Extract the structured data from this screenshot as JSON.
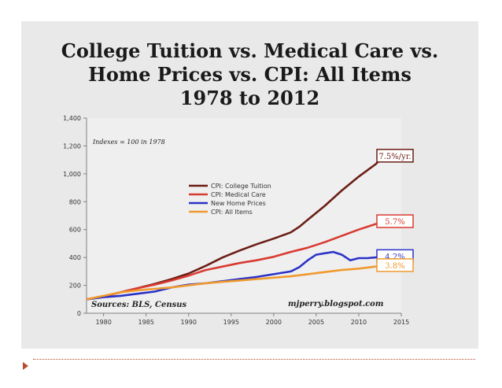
{
  "chart_data": {
    "type": "line",
    "title": "College Tuition vs. Medical Care vs. Home Prices vs. CPI: All Items 1978 to 2012",
    "title_lines": [
      "College Tuition vs. Medical Care vs.",
      "Home Prices vs. CPI: All Items",
      "1978 to 2012"
    ],
    "note": "Indexes = 100 in 1978",
    "xlabel": "",
    "ylabel": "",
    "xlim": [
      1978,
      2015
    ],
    "ylim": [
      0,
      1400
    ],
    "x_ticks": [
      1980,
      1985,
      1990,
      1995,
      2000,
      2005,
      2010,
      2015
    ],
    "y_ticks": [
      0,
      200,
      400,
      600,
      800,
      1000,
      1200,
      1400
    ],
    "y_tick_labels": [
      "0",
      "200",
      "400",
      "600",
      "800",
      "1,000",
      "1,200",
      "1,400"
    ],
    "grid": false,
    "legend_position": "center",
    "sources_text": "Sources: BLS, Census",
    "credit_text": "mjperry.blogspot.com",
    "series": [
      {
        "name": "CPI: College Tuition",
        "color": "#6b1d14",
        "end_label": "7.5%/yr.",
        "points": [
          [
            1978,
            100
          ],
          [
            1980,
            120
          ],
          [
            1982,
            150
          ],
          [
            1984,
            180
          ],
          [
            1986,
            210
          ],
          [
            1988,
            245
          ],
          [
            1990,
            285
          ],
          [
            1992,
            340
          ],
          [
            1994,
            400
          ],
          [
            1996,
            450
          ],
          [
            1998,
            495
          ],
          [
            2000,
            535
          ],
          [
            2002,
            580
          ],
          [
            2003,
            620
          ],
          [
            2004,
            670
          ],
          [
            2006,
            770
          ],
          [
            2008,
            880
          ],
          [
            2010,
            980
          ],
          [
            2012,
            1070
          ],
          [
            2013,
            1130
          ]
        ]
      },
      {
        "name": "CPI: Medical Care",
        "color": "#d83a30",
        "end_label": "5.7%",
        "points": [
          [
            1978,
            100
          ],
          [
            1980,
            120
          ],
          [
            1982,
            150
          ],
          [
            1984,
            180
          ],
          [
            1986,
            205
          ],
          [
            1988,
            235
          ],
          [
            1990,
            270
          ],
          [
            1992,
            310
          ],
          [
            1994,
            335
          ],
          [
            1996,
            360
          ],
          [
            1998,
            380
          ],
          [
            2000,
            405
          ],
          [
            2002,
            440
          ],
          [
            2004,
            470
          ],
          [
            2006,
            510
          ],
          [
            2008,
            555
          ],
          [
            2010,
            600
          ],
          [
            2012,
            640
          ],
          [
            2013,
            660
          ]
        ]
      },
      {
        "name": "New Home Prices",
        "color": "#2a32c8",
        "end_label": "4.2%",
        "points": [
          [
            1978,
            100
          ],
          [
            1980,
            115
          ],
          [
            1982,
            125
          ],
          [
            1984,
            140
          ],
          [
            1986,
            155
          ],
          [
            1988,
            185
          ],
          [
            1990,
            205
          ],
          [
            1992,
            215
          ],
          [
            1994,
            230
          ],
          [
            1996,
            245
          ],
          [
            1998,
            260
          ],
          [
            2000,
            280
          ],
          [
            2002,
            300
          ],
          [
            2003,
            330
          ],
          [
            2004,
            380
          ],
          [
            2005,
            420
          ],
          [
            2006,
            430
          ],
          [
            2007,
            440
          ],
          [
            2008,
            420
          ],
          [
            2009,
            380
          ],
          [
            2010,
            395
          ],
          [
            2011,
            395
          ],
          [
            2012,
            400
          ],
          [
            2013,
            410
          ]
        ]
      },
      {
        "name": "CPI: All Items",
        "color": "#f09a2e",
        "end_label": "3.8%",
        "points": [
          [
            1978,
            100
          ],
          [
            1980,
            125
          ],
          [
            1982,
            150
          ],
          [
            1984,
            165
          ],
          [
            1986,
            175
          ],
          [
            1988,
            185
          ],
          [
            1990,
            200
          ],
          [
            1992,
            215
          ],
          [
            1994,
            225
          ],
          [
            1996,
            235
          ],
          [
            1998,
            245
          ],
          [
            2000,
            255
          ],
          [
            2002,
            265
          ],
          [
            2004,
            280
          ],
          [
            2006,
            295
          ],
          [
            2008,
            310
          ],
          [
            2010,
            320
          ],
          [
            2012,
            335
          ],
          [
            2013,
            345
          ]
        ]
      }
    ]
  }
}
